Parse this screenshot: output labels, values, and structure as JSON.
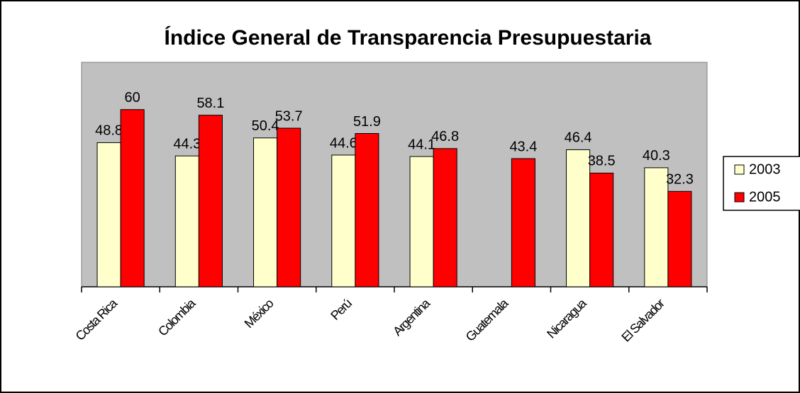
{
  "chart_data": {
    "type": "bar",
    "title": "Índice General de Transparencia Presupuestaria",
    "categories": [
      "Costa Rica",
      "Colombia",
      "México",
      "Perú",
      "Argentina",
      "Guatemala",
      "Nicaragua",
      "El Salvador"
    ],
    "series": [
      {
        "name": "2003",
        "color": "#ffffcc",
        "values": [
          48.8,
          44.3,
          50.4,
          44.6,
          44.1,
          null,
          46.4,
          40.3
        ]
      },
      {
        "name": "2005",
        "color": "#ff0000",
        "values": [
          60,
          58.1,
          53.7,
          51.9,
          46.8,
          43.4,
          38.5,
          32.3
        ]
      }
    ],
    "ylim": [
      0,
      76
    ],
    "legend": "right",
    "plot_background": "#c0c0c0"
  }
}
